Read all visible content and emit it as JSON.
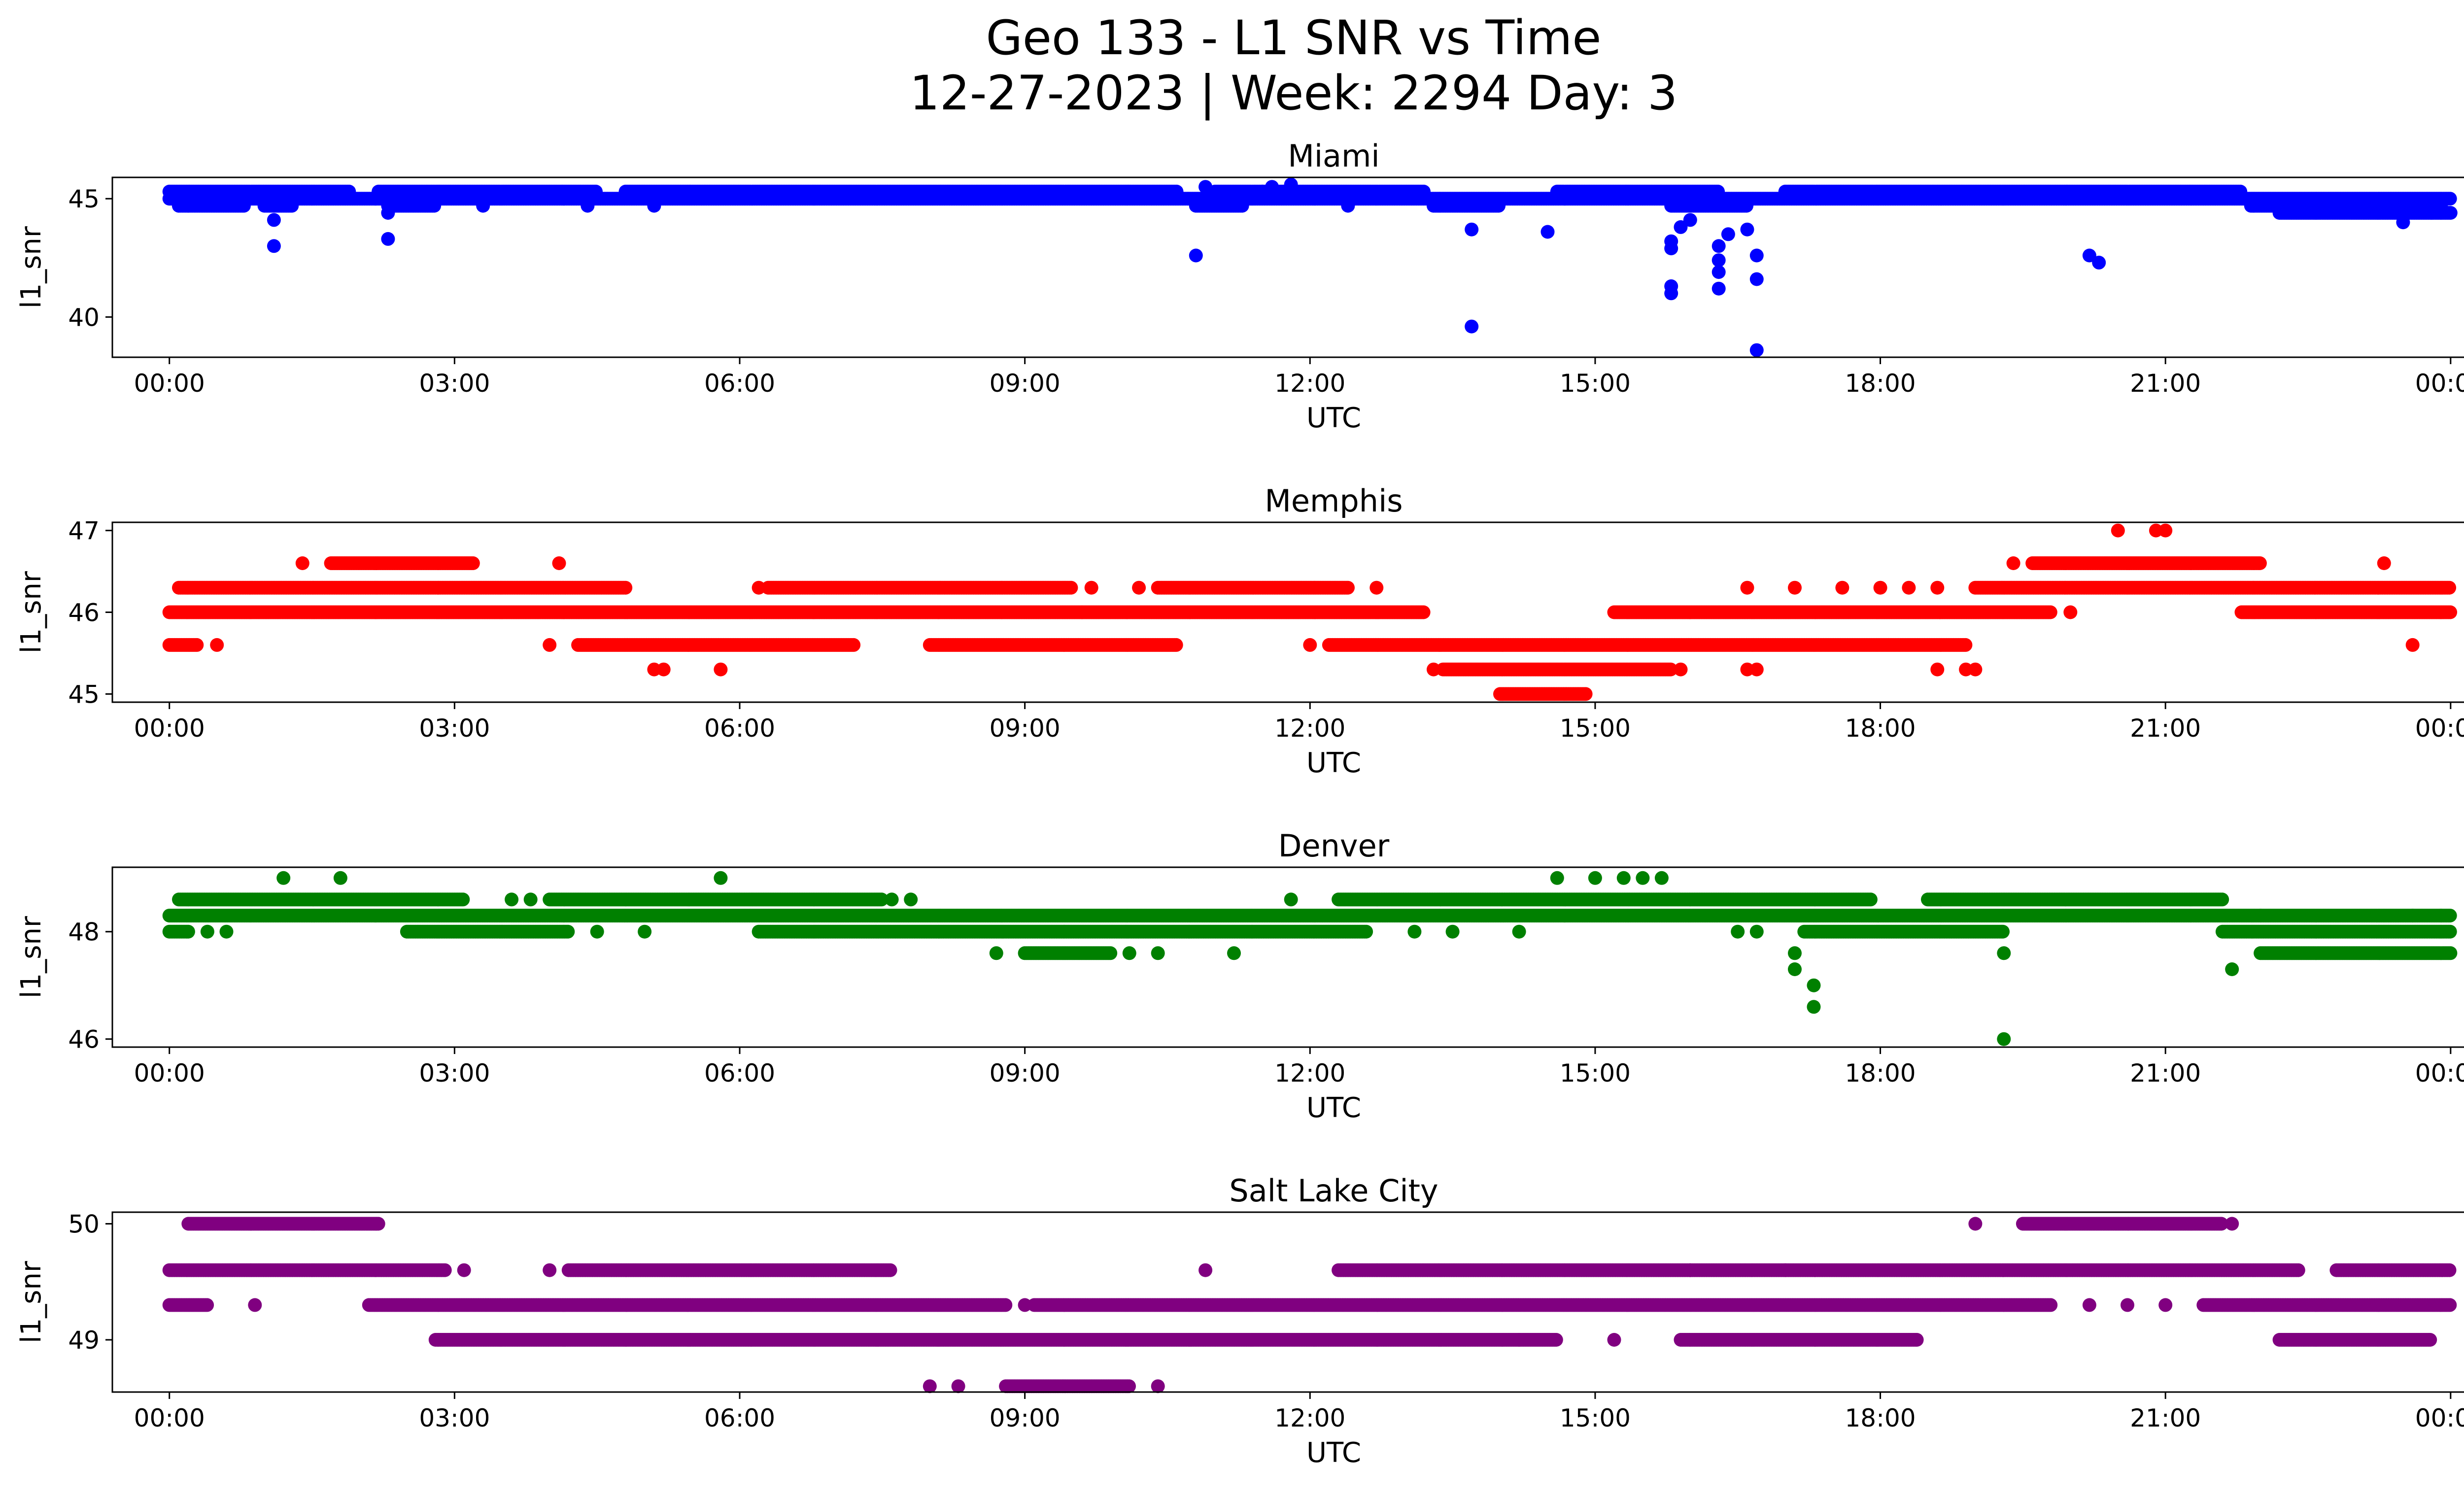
{
  "figure": {
    "title_line1": "Geo 133 - L1 SNR vs Time",
    "title_line2": "12-27-2023 | Week: 2294 Day: 3"
  },
  "chart_data": [
    {
      "type": "scatter",
      "title": "Miami",
      "xlabel": "UTC",
      "ylabel": "l1_snr",
      "color": "#0000ff",
      "xlim": [
        -0.6,
        25.1
      ],
      "ylim": [
        38.3,
        45.9
      ],
      "xticks": [
        0,
        3,
        6,
        9,
        12,
        15,
        18,
        21,
        24
      ],
      "xtick_labels": [
        "00:00",
        "03:00",
        "06:00",
        "09:00",
        "12:00",
        "15:00",
        "18:00",
        "21:00",
        "00:00"
      ],
      "yticks": [
        40,
        45
      ],
      "bands": [
        {
          "y": 45.0,
          "x": [
            [
              0,
              24
            ]
          ]
        },
        {
          "y": 45.3,
          "x": [
            [
              0,
              1.9
            ],
            [
              2.2,
              4.5
            ],
            [
              4.8,
              10.6
            ],
            [
              11.0,
              13.2
            ],
            [
              14.6,
              16.3
            ],
            [
              17.0,
              21.8
            ]
          ]
        },
        {
          "y": 44.7,
          "x": [
            [
              0.1,
              0.8
            ],
            [
              1.0,
              1.3
            ],
            [
              2.3,
              2.8
            ],
            [
              10.8,
              11.3
            ],
            [
              13.3,
              14.0
            ],
            [
              15.8,
              16.6
            ],
            [
              21.9,
              23.9
            ]
          ]
        },
        {
          "y": 44.4,
          "x": [
            [
              22.2,
              24
            ]
          ]
        }
      ],
      "points": [
        [
          0.1,
          44.7
        ],
        [
          1.1,
          44.1
        ],
        [
          1.1,
          43.0
        ],
        [
          2.3,
          44.4
        ],
        [
          2.3,
          43.3
        ],
        [
          3.3,
          44.7
        ],
        [
          4.4,
          44.7
        ],
        [
          5.1,
          44.7
        ],
        [
          10.8,
          42.6
        ],
        [
          10.9,
          45.5
        ],
        [
          11.6,
          45.5
        ],
        [
          11.8,
          45.6
        ],
        [
          11.5,
          45.3
        ],
        [
          12.4,
          44.7
        ],
        [
          13.7,
          43.7
        ],
        [
          13.7,
          39.6
        ],
        [
          14.5,
          43.6
        ],
        [
          15.8,
          43.2
        ],
        [
          15.8,
          42.9
        ],
        [
          15.8,
          41.3
        ],
        [
          15.8,
          41.0
        ],
        [
          15.9,
          43.8
        ],
        [
          16.0,
          44.1
        ],
        [
          16.3,
          43.0
        ],
        [
          16.3,
          42.4
        ],
        [
          16.3,
          41.9
        ],
        [
          16.3,
          41.2
        ],
        [
          16.4,
          43.5
        ],
        [
          16.6,
          43.7
        ],
        [
          16.7,
          42.6
        ],
        [
          16.7,
          41.6
        ],
        [
          16.7,
          38.6
        ],
        [
          20.2,
          42.6
        ],
        [
          20.3,
          42.3
        ],
        [
          23.5,
          44.0
        ],
        [
          23.8,
          44.4
        ]
      ]
    },
    {
      "type": "scatter",
      "title": "Memphis",
      "xlabel": "UTC",
      "ylabel": "l1_snr",
      "color": "#ff0000",
      "xlim": [
        -0.6,
        25.1
      ],
      "ylim": [
        44.9,
        47.1
      ],
      "xticks": [
        0,
        3,
        6,
        9,
        12,
        15,
        18,
        21,
        24
      ],
      "xtick_labels": [
        "00:00",
        "03:00",
        "06:00",
        "09:00",
        "12:00",
        "15:00",
        "18:00",
        "21:00",
        "00:00"
      ],
      "yticks": [
        45,
        46,
        47
      ],
      "bands": [
        {
          "y": 46.0,
          "x": [
            [
              0,
              13.2
            ],
            [
              15.2,
              19.8
            ],
            [
              21.8,
              24
            ]
          ]
        },
        {
          "y": 46.3,
          "x": [
            [
              0.1,
              4.8
            ],
            [
              6.3,
              9.5
            ],
            [
              10.4,
              12.4
            ],
            [
              19.0,
              24
            ]
          ]
        },
        {
          "y": 45.6,
          "x": [
            [
              0,
              0.3
            ],
            [
              4.3,
              7.2
            ],
            [
              8.0,
              10.6
            ],
            [
              12.2,
              18.9
            ]
          ]
        },
        {
          "y": 46.6,
          "x": [
            [
              1.7,
              3.2
            ],
            [
              19.6,
              22.0
            ]
          ]
        },
        {
          "y": 45.3,
          "x": [
            [
              13.4,
              15.8
            ]
          ]
        },
        {
          "y": 45.0,
          "x": [
            [
              14.0,
              14.9
            ]
          ]
        }
      ],
      "points": [
        [
          0.5,
          45.6
        ],
        [
          1.4,
          46.6
        ],
        [
          4.0,
          45.6
        ],
        [
          4.1,
          46.6
        ],
        [
          5.1,
          45.3
        ],
        [
          5.2,
          45.3
        ],
        [
          5.8,
          45.3
        ],
        [
          6.2,
          46.3
        ],
        [
          9.6,
          46.0
        ],
        [
          9.7,
          46.3
        ],
        [
          10.2,
          46.3
        ],
        [
          12.0,
          45.6
        ],
        [
          12.7,
          46.3
        ],
        [
          13.3,
          45.3
        ],
        [
          15.9,
          45.3
        ],
        [
          16.6,
          45.3
        ],
        [
          16.7,
          45.3
        ],
        [
          16.6,
          46.3
        ],
        [
          17.1,
          46.3
        ],
        [
          17.6,
          46.3
        ],
        [
          18.0,
          46.3
        ],
        [
          18.3,
          46.3
        ],
        [
          18.6,
          46.3
        ],
        [
          18.6,
          45.3
        ],
        [
          18.9,
          45.3
        ],
        [
          19.0,
          45.3
        ],
        [
          19.4,
          46.6
        ],
        [
          20.0,
          46.0
        ],
        [
          20.5,
          47.0
        ],
        [
          20.9,
          47.0
        ],
        [
          21.0,
          47.0
        ],
        [
          23.3,
          46.6
        ],
        [
          23.6,
          45.6
        ]
      ]
    },
    {
      "type": "scatter",
      "title": "Denver",
      "xlabel": "UTC",
      "ylabel": "l1_snr",
      "color": "#008000",
      "xlim": [
        -0.6,
        25.1
      ],
      "ylim": [
        45.85,
        49.2
      ],
      "xticks": [
        0,
        3,
        6,
        9,
        12,
        15,
        18,
        21,
        24
      ],
      "xtick_labels": [
        "00:00",
        "03:00",
        "06:00",
        "09:00",
        "12:00",
        "15:00",
        "18:00",
        "21:00",
        "00:00"
      ],
      "yticks": [
        46,
        48
      ],
      "bands": [
        {
          "y": 48.3,
          "x": [
            [
              0,
              24
            ]
          ]
        },
        {
          "y": 48.6,
          "x": [
            [
              0.1,
              3.1
            ],
            [
              4.0,
              7.5
            ],
            [
              12.3,
              17.9
            ],
            [
              18.5,
              21.6
            ]
          ]
        },
        {
          "y": 48.0,
          "x": [
            [
              0,
              0.2
            ],
            [
              2.5,
              4.2
            ],
            [
              6.2,
              12.6
            ],
            [
              17.2,
              19.3
            ],
            [
              21.6,
              24
            ]
          ]
        },
        {
          "y": 47.6,
          "x": [
            [
              9.0,
              9.9
            ],
            [
              22.0,
              24
            ]
          ]
        }
      ],
      "points": [
        [
          0.4,
          48.0
        ],
        [
          0.6,
          48.0
        ],
        [
          1.2,
          49.0
        ],
        [
          1.8,
          49.0
        ],
        [
          3.6,
          48.6
        ],
        [
          3.8,
          48.6
        ],
        [
          4.5,
          48.0
        ],
        [
          5.0,
          48.0
        ],
        [
          5.8,
          49.0
        ],
        [
          7.6,
          48.6
        ],
        [
          7.8,
          48.6
        ],
        [
          8.7,
          47.6
        ],
        [
          10.1,
          47.6
        ],
        [
          10.4,
          47.6
        ],
        [
          11.2,
          47.6
        ],
        [
          11.8,
          48.6
        ],
        [
          13.1,
          48.0
        ],
        [
          13.5,
          48.0
        ],
        [
          14.2,
          48.0
        ],
        [
          14.6,
          49.0
        ],
        [
          15.0,
          49.0
        ],
        [
          15.3,
          49.0
        ],
        [
          15.5,
          49.0
        ],
        [
          15.7,
          49.0
        ],
        [
          16.5,
          48.0
        ],
        [
          16.7,
          48.0
        ],
        [
          17.1,
          47.6
        ],
        [
          17.1,
          47.3
        ],
        [
          17.3,
          47.0
        ],
        [
          17.3,
          46.6
        ],
        [
          19.3,
          47.6
        ],
        [
          19.3,
          46.0
        ],
        [
          21.7,
          47.3
        ],
        [
          22.0,
          48.3
        ],
        [
          23.6,
          48.3
        ],
        [
          23.9,
          48.3
        ]
      ]
    },
    {
      "type": "scatter",
      "title": "Salt Lake City",
      "xlabel": "UTC",
      "ylabel": "l1_snr",
      "color": "#800080",
      "xlim": [
        -0.6,
        25.1
      ],
      "ylim": [
        48.55,
        50.1
      ],
      "xticks": [
        0,
        3,
        6,
        9,
        12,
        15,
        18,
        21,
        24
      ],
      "xtick_labels": [
        "00:00",
        "03:00",
        "06:00",
        "09:00",
        "12:00",
        "15:00",
        "18:00",
        "21:00",
        "00:00"
      ],
      "yticks": [
        49,
        50
      ],
      "bands": [
        {
          "y": 49.6,
          "x": [
            [
              0,
              2.9
            ],
            [
              4.2,
              7.6
            ],
            [
              12.3,
              22.4
            ],
            [
              22.8,
              24
            ]
          ]
        },
        {
          "y": 49.3,
          "x": [
            [
              0,
              0.4
            ],
            [
              2.1,
              8.8
            ],
            [
              9.1,
              19.8
            ],
            [
              21.4,
              24
            ]
          ]
        },
        {
          "y": 49.0,
          "x": [
            [
              2.8,
              14.6
            ],
            [
              15.9,
              18.4
            ],
            [
              22.2,
              23.8
            ]
          ]
        },
        {
          "y": 50.0,
          "x": [
            [
              0.2,
              2.2
            ],
            [
              19.5,
              21.6
            ]
          ]
        },
        {
          "y": 48.6,
          "x": [
            [
              8.8,
              10.1
            ]
          ]
        }
      ],
      "points": [
        [
          0.9,
          49.3
        ],
        [
          3.1,
          49.6
        ],
        [
          4.0,
          49.6
        ],
        [
          8.0,
          48.6
        ],
        [
          8.3,
          48.6
        ],
        [
          10.4,
          48.6
        ],
        [
          9.0,
          49.3
        ],
        [
          10.9,
          49.6
        ],
        [
          14.2,
          49.0
        ],
        [
          15.2,
          49.0
        ],
        [
          16.0,
          49.6
        ],
        [
          17.0,
          49.6
        ],
        [
          19.0,
          50.0
        ],
        [
          20.2,
          49.3
        ],
        [
          20.6,
          49.3
        ],
        [
          21.0,
          49.3
        ],
        [
          21.7,
          50.0
        ]
      ]
    }
  ]
}
